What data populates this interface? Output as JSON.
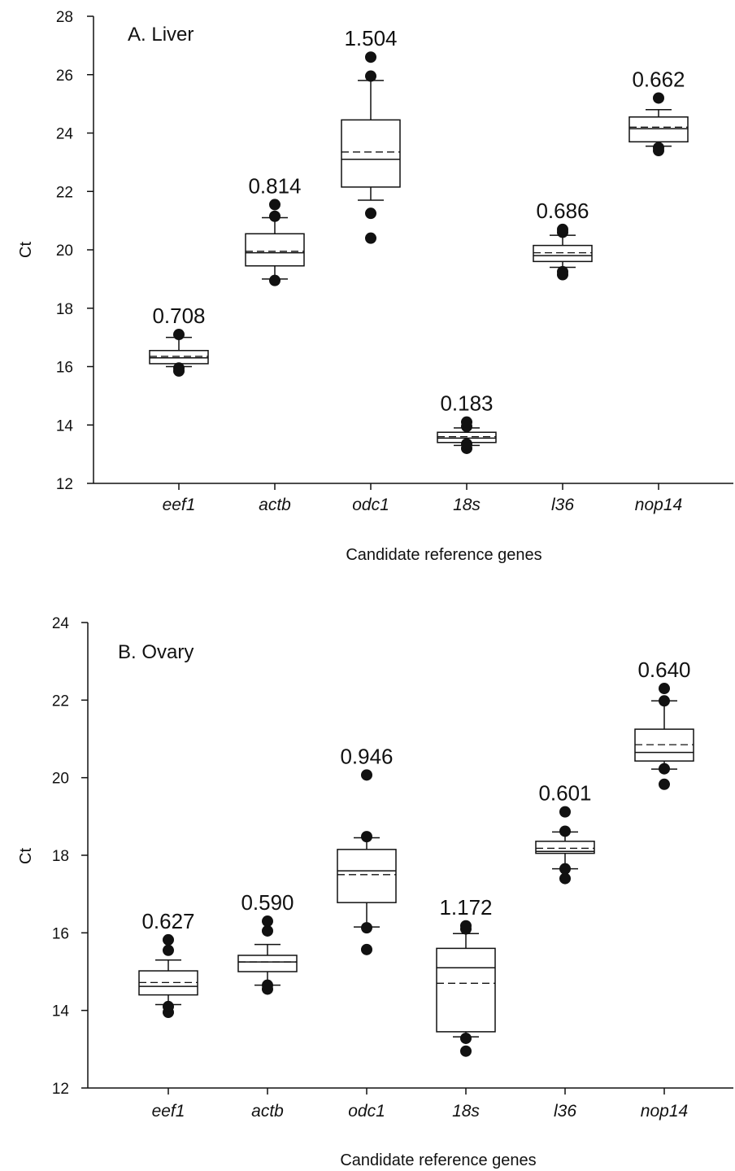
{
  "chart_data": [
    {
      "type": "box",
      "title": "A. Liver",
      "xlabel": "Candidate reference genes",
      "ylabel": "Ct",
      "ylim": [
        12,
        28
      ],
      "yticks": [
        12,
        14,
        16,
        18,
        20,
        22,
        24,
        26,
        28
      ],
      "categories": [
        "eef1",
        "actb",
        "odc1",
        "18s",
        "l36",
        "nop14"
      ],
      "value_labels": [
        "0.708",
        "0.814",
        "1.504",
        "0.183",
        "0.686",
        "0.662"
      ],
      "boxes": [
        {
          "q1": 16.1,
          "median": 16.3,
          "mean": 16.35,
          "q3": 16.55,
          "whisker_low": 16.0,
          "whisker_high": 17.0,
          "outliers": [
            15.85,
            15.95,
            17.1
          ]
        },
        {
          "q1": 19.45,
          "median": 19.9,
          "mean": 19.95,
          "q3": 20.55,
          "whisker_low": 19.0,
          "whisker_high": 21.1,
          "outliers": [
            18.95,
            21.15,
            21.55
          ]
        },
        {
          "q1": 22.15,
          "median": 23.1,
          "mean": 23.35,
          "q3": 24.45,
          "whisker_low": 21.7,
          "whisker_high": 25.8,
          "outliers": [
            20.4,
            21.25,
            25.95,
            26.6
          ]
        },
        {
          "q1": 13.4,
          "median": 13.55,
          "mean": 13.6,
          "q3": 13.75,
          "whisker_low": 13.3,
          "whisker_high": 13.9,
          "outliers": [
            13.2,
            13.35,
            13.95,
            14.1
          ]
        },
        {
          "q1": 19.6,
          "median": 19.8,
          "mean": 19.9,
          "q3": 20.15,
          "whisker_low": 19.4,
          "whisker_high": 20.5,
          "outliers": [
            19.15,
            19.25,
            20.6,
            20.7
          ]
        },
        {
          "q1": 23.7,
          "median": 24.15,
          "mean": 24.2,
          "q3": 24.55,
          "whisker_low": 23.55,
          "whisker_high": 24.8,
          "outliers": [
            23.4,
            23.5,
            25.2
          ]
        }
      ]
    },
    {
      "type": "box",
      "title": "B. Ovary",
      "xlabel": "Candidate reference genes",
      "ylabel": "Ct",
      "ylim": [
        12,
        24
      ],
      "yticks": [
        12,
        14,
        16,
        18,
        20,
        22,
        24
      ],
      "categories": [
        "eef1",
        "actb",
        "odc1",
        "18s",
        "l36",
        "nop14"
      ],
      "value_labels": [
        "0.627",
        "0.590",
        "0.946",
        "1.172",
        "0.601",
        "0.640"
      ],
      "boxes": [
        {
          "q1": 14.4,
          "median": 14.62,
          "mean": 14.72,
          "q3": 15.02,
          "whisker_low": 14.15,
          "whisker_high": 15.3,
          "outliers": [
            13.95,
            14.1,
            15.55,
            15.82
          ]
        },
        {
          "q1": 15.0,
          "median": 15.25,
          "mean": 15.25,
          "q3": 15.42,
          "whisker_low": 14.65,
          "whisker_high": 15.7,
          "outliers": [
            14.55,
            14.65,
            16.05,
            16.3
          ]
        },
        {
          "q1": 16.78,
          "median": 17.6,
          "mean": 17.5,
          "q3": 18.15,
          "whisker_low": 16.15,
          "whisker_high": 18.45,
          "outliers": [
            15.57,
            16.13,
            18.48,
            20.07
          ]
        },
        {
          "q1": 13.45,
          "median": 15.1,
          "mean": 14.7,
          "q3": 15.6,
          "whisker_low": 13.32,
          "whisker_high": 15.98,
          "outliers": [
            12.95,
            13.28,
            16.1,
            16.18
          ]
        },
        {
          "q1": 18.05,
          "median": 18.1,
          "mean": 18.18,
          "q3": 18.36,
          "whisker_low": 17.65,
          "whisker_high": 18.6,
          "outliers": [
            17.4,
            17.65,
            18.62,
            19.12
          ]
        },
        {
          "q1": 20.43,
          "median": 20.65,
          "mean": 20.85,
          "q3": 21.25,
          "whisker_low": 20.22,
          "whisker_high": 21.98,
          "outliers": [
            19.83,
            20.23,
            21.98,
            22.3
          ]
        }
      ]
    }
  ]
}
